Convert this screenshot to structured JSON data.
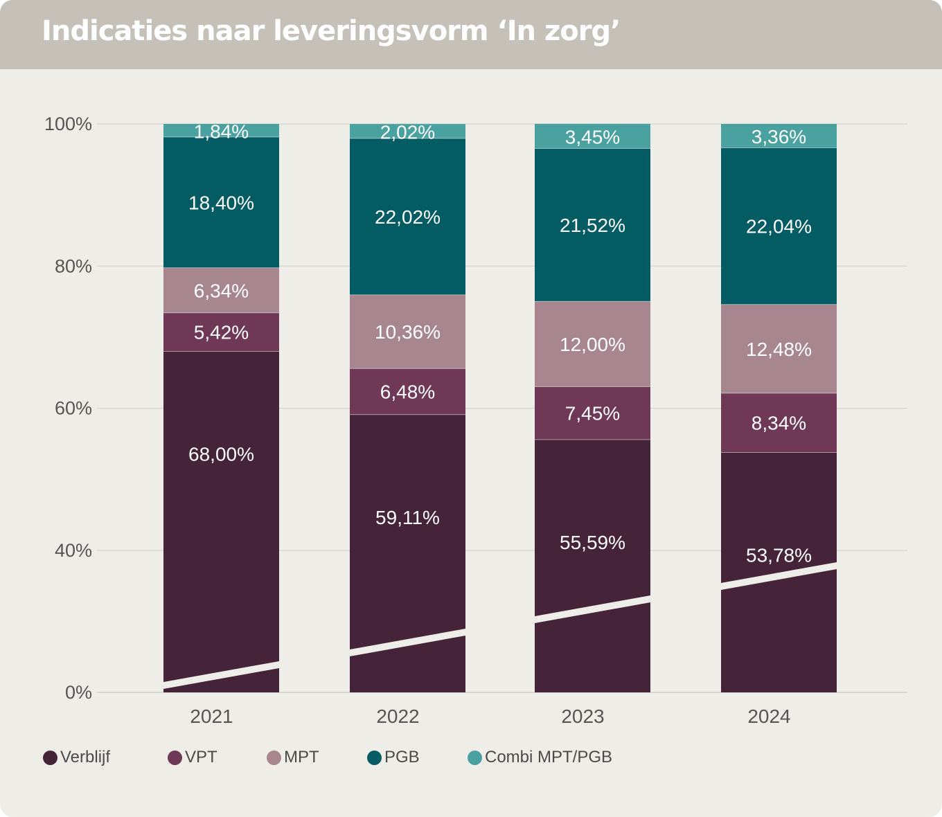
{
  "header": {
    "title": "Indicaties naar leveringsvorm ‘In zorg’"
  },
  "colors": {
    "Verblijf": "#45243a",
    "VPT": "#6e3856",
    "MPT": "#a7868f",
    "PGB": "#035c63",
    "Combi MPT/PGB": "#49a29f",
    "header_bg": "#c6c1b8",
    "panel_bg": "#eeede8"
  },
  "legend": [
    {
      "label": "Verblijf",
      "color": "#45243a"
    },
    {
      "label": "VPT",
      "color": "#6e3856"
    },
    {
      "label": "MPT",
      "color": "#a7868f"
    },
    {
      "label": "PGB",
      "color": "#035c63"
    },
    {
      "label": "Combi MPT/PGB",
      "color": "#49a29f"
    }
  ],
  "chart_data": {
    "type": "bar",
    "stacked": true,
    "title": "Indicaties naar leveringsvorm ‘In zorg’",
    "categories": [
      "2021",
      "2022",
      "2023",
      "2024"
    ],
    "series": [
      {
        "name": "Verblijf",
        "values": [
          68.0,
          59.11,
          55.59,
          53.78
        ],
        "labels": [
          "68,00%",
          "59,11%",
          "55,59%",
          "53,78%"
        ]
      },
      {
        "name": "VPT",
        "values": [
          5.42,
          6.48,
          7.45,
          8.34
        ],
        "labels": [
          "5,42%",
          "6,48%",
          "7,45%",
          "8,34%"
        ]
      },
      {
        "name": "MPT",
        "values": [
          6.34,
          10.36,
          12.0,
          12.48
        ],
        "labels": [
          "6,34%",
          "10,36%",
          "12,00%",
          "12,48%"
        ]
      },
      {
        "name": "PGB",
        "values": [
          18.4,
          22.02,
          21.52,
          22.04
        ],
        "labels": [
          "18,40%",
          "22,02%",
          "21,52%",
          "22,04%"
        ]
      },
      {
        "name": "Combi MPT/PGB",
        "values": [
          1.84,
          2.02,
          3.45,
          3.36
        ],
        "labels": [
          "1,84%",
          "2,02%",
          "3,45%",
          "3,36%"
        ]
      }
    ],
    "axis_break": true,
    "ylim": [
      0,
      100
    ],
    "yticks": [
      0,
      40,
      60,
      80,
      100
    ],
    "ytick_labels": [
      "0%",
      "40%",
      "60%",
      "80%",
      "100%"
    ],
    "xlabel": "",
    "ylabel": "",
    "grid": true,
    "legend_position": "bottom-left"
  }
}
